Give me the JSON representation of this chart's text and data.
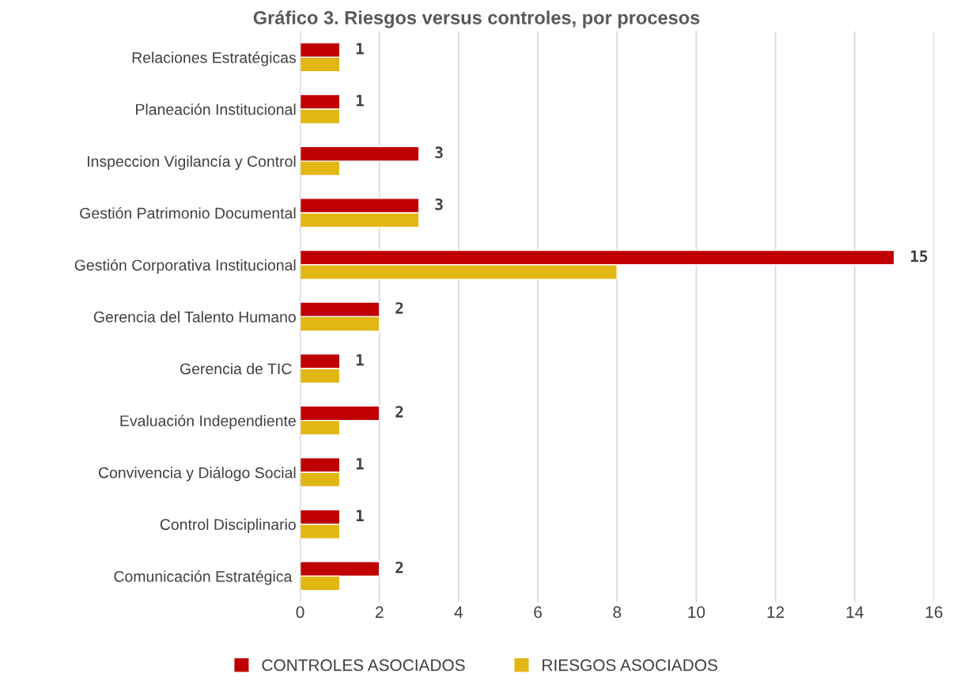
{
  "chart_data": {
    "type": "bar",
    "orientation": "horizontal",
    "title": "Gráfico 3. Riesgos versus controles, por procesos",
    "categories": [
      "Relaciones Estratégicas",
      "Planeación Institucional",
      "Inspeccion Vigilancía y Control",
      "Gestión Patrimonio Documental",
      "Gestión Corporativa Institucional",
      "Gerencia del Talento Humano",
      "Gerencia de TIC ",
      "Evaluación Independiente",
      "Convivencia y Diálogo Social",
      "Control Disciplinario",
      "Comunicación Estratégica "
    ],
    "series": [
      {
        "name": "CONTROLES ASOCIADOS",
        "color": "#c00000",
        "values": [
          1,
          1,
          3,
          3,
          15,
          2,
          1,
          2,
          1,
          1,
          2
        ],
        "value_labels": [
          "1",
          "1",
          "3",
          "3",
          "15",
          "2",
          "1",
          "2",
          "1",
          "1",
          "2"
        ]
      },
      {
        "name": "RIESGOS ASOCIADOS",
        "color": "#e2b714",
        "values": [
          1,
          1,
          1,
          3,
          8,
          2,
          1,
          1,
          1,
          1,
          1
        ]
      }
    ],
    "xlim": [
      0,
      16
    ],
    "xticks": [
      0,
      2,
      4,
      6,
      8,
      10,
      12,
      14,
      16
    ],
    "grid": "x",
    "legend": "bottom"
  }
}
